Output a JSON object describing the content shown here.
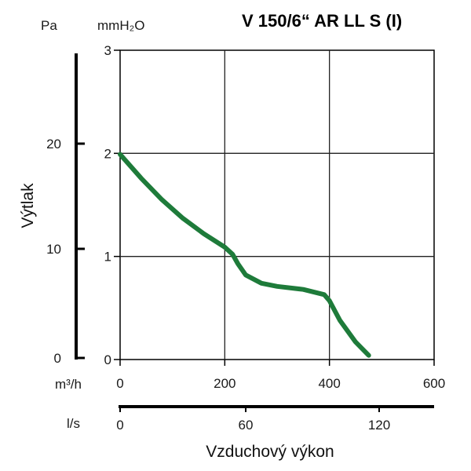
{
  "chart_data": {
    "type": "line",
    "title": "V 150/6“ AR LL S (I)",
    "xlabel": "Vzduchový výkon",
    "ylabel": "Výtlak",
    "x_unit_primary": "m³/h",
    "x_unit_secondary": "l/s",
    "y_unit_left": "Pa",
    "y_unit_right": "mmH₂O",
    "xlim": [
      0,
      600
    ],
    "ylim": [
      0,
      3
    ],
    "x_ticks": [
      "0",
      "200",
      "400",
      "600"
    ],
    "x_ticks_secondary": [
      "0",
      "60",
      "120"
    ],
    "y_ticks_mmH2O": [
      "0",
      "1",
      "2",
      "3"
    ],
    "y_ticks_Pa": [
      "0",
      "10",
      "20"
    ],
    "grid": true,
    "line_color": "#1e7b3a",
    "series": [
      {
        "x": [
          0,
          40,
          80,
          120,
          160,
          200,
          215,
          225,
          240,
          270,
          300,
          350,
          390,
          400,
          420,
          450,
          475
        ],
        "y": [
          1.99,
          1.76,
          1.55,
          1.37,
          1.22,
          1.09,
          1.02,
          0.93,
          0.82,
          0.74,
          0.71,
          0.68,
          0.63,
          0.57,
          0.38,
          0.17,
          0.04
        ]
      }
    ]
  }
}
